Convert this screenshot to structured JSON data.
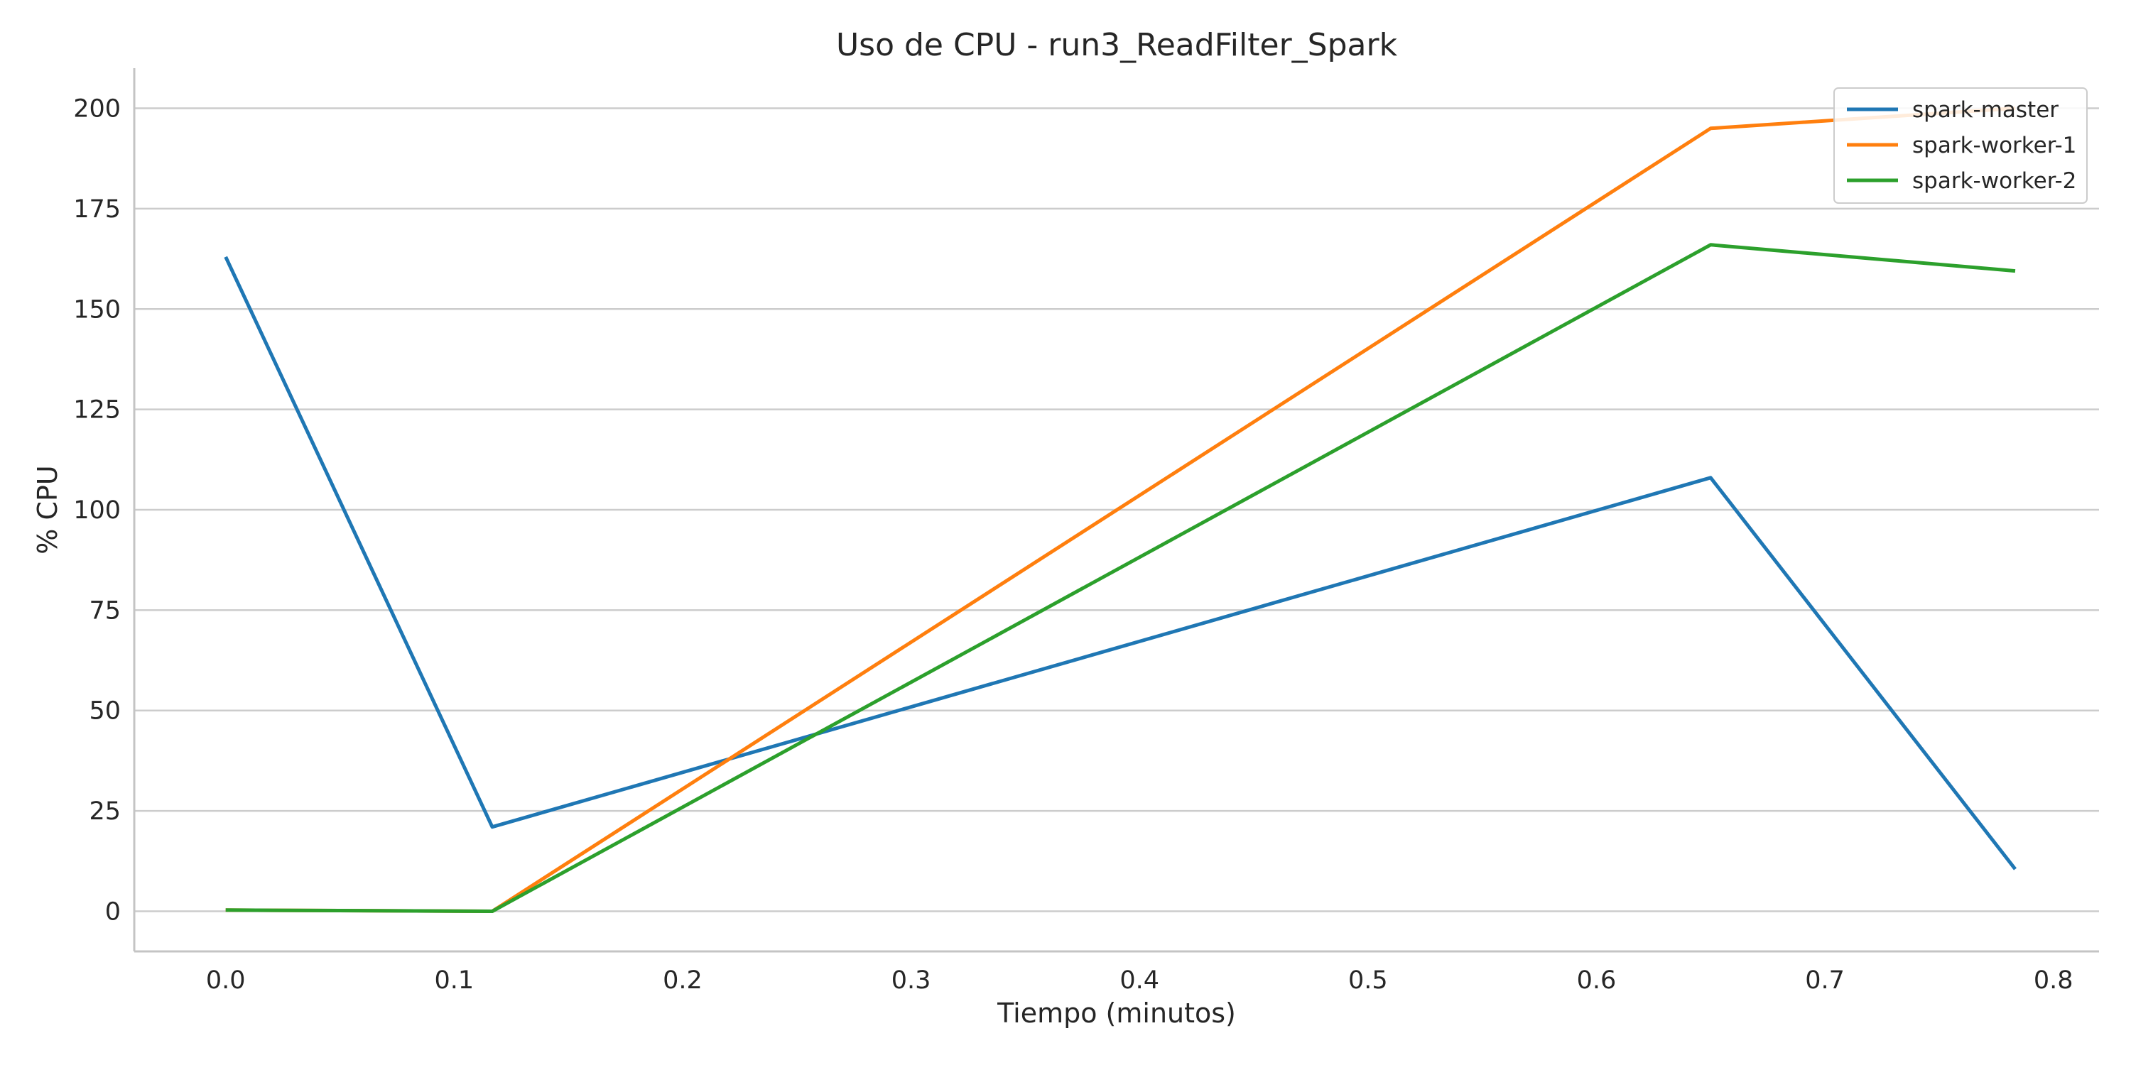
{
  "chart_data": {
    "type": "line",
    "title": "Uso de CPU - run3_ReadFilter_Spark",
    "xlabel": "Tiempo (minutos)",
    "ylabel": "% CPU",
    "xlim": [
      -0.04,
      0.82
    ],
    "ylim": [
      -10,
      210
    ],
    "xticks": [
      0.0,
      0.1,
      0.2,
      0.3,
      0.4,
      0.5,
      0.6,
      0.7,
      0.8
    ],
    "xtick_labels": [
      "0.0",
      "0.1",
      "0.2",
      "0.3",
      "0.4",
      "0.5",
      "0.6",
      "0.7",
      "0.8"
    ],
    "yticks": [
      0,
      25,
      50,
      75,
      100,
      125,
      150,
      175,
      200
    ],
    "ytick_labels": [
      "0",
      "25",
      "50",
      "75",
      "100",
      "125",
      "150",
      "175",
      "200"
    ],
    "grid": "horizontal",
    "legend_position": "top-right",
    "series": [
      {
        "name": "spark-master",
        "color": "#1f77b4",
        "x": [
          0.0,
          0.1167,
          0.65,
          0.7833
        ],
        "y": [
          163,
          21,
          108,
          10.5
        ]
      },
      {
        "name": "spark-worker-1",
        "color": "#ff7f0e",
        "x": [
          0.0,
          0.1167,
          0.65,
          0.7833
        ],
        "y": [
          0.3,
          0,
          195,
          200
        ]
      },
      {
        "name": "spark-worker-2",
        "color": "#2ca02c",
        "x": [
          0.0,
          0.1167,
          0.65,
          0.7833
        ],
        "y": [
          0.3,
          0,
          166,
          159.5
        ]
      }
    ]
  }
}
